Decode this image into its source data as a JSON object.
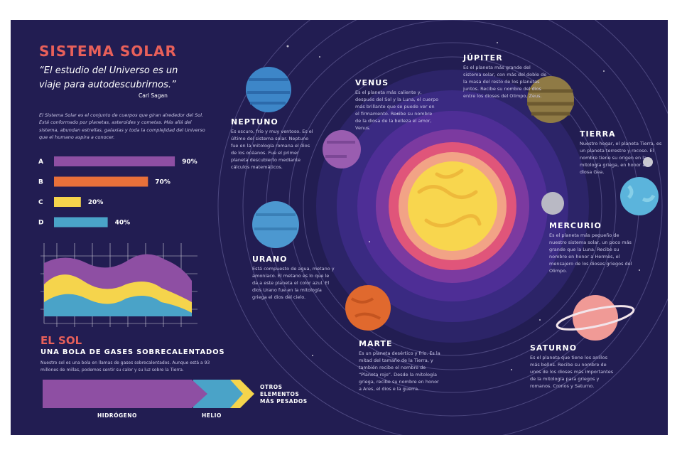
{
  "header": {
    "title": "SISTEMA SOLAR",
    "quote": "“El estudio del Universo es un viaje para autodescubrirnos.”",
    "author": "Carl Sagan"
  },
  "intro": "El Sistema Solar es el conjunto de cuerpos que giran alrededor del Sol. Está conformado por planetas, asteroides y cometas. Más allá del sistema, abundan estrellas, galaxias y toda la complejidad del Universo que el humano aspira a conocer.",
  "bar_chart": {
    "categories": [
      "A",
      "B",
      "C",
      "D"
    ],
    "values": [
      90,
      70,
      20,
      40
    ],
    "value_labels": [
      "90%",
      "70%",
      "20%",
      "40%"
    ],
    "colors": [
      "#8e4fa3",
      "#e8703a",
      "#f5d44c",
      "#4aa3c8"
    ]
  },
  "sun": {
    "title": "EL SOL",
    "subtitle": "UNA BOLA DE GASES SOBRECALENTADOS",
    "text": "Nuestro sol es una bola en llamas de gases sobrecalentados. Aunque está a 93 millones de millas, podemos sentir su calor y su luz sobre la Tierra.",
    "labels": [
      "HIDRÓGENO",
      "HELIO",
      "OTROS ELEMENTOS MÁS PESADOS"
    ]
  },
  "planets": [
    {
      "name": "NEPTUNO",
      "text": "Es oscuro, frío y muy ventoso. Es el último del sistema solar. Neptuno fue en la mitología romana el dios de los océanos. Fue el primer planeta descubierto mediante cálculos matemáticos."
    },
    {
      "name": "VENUS",
      "text": "Es el planeta más caliente y, después del Sol y la Luna, el cuerpo más brillante que se puede ver en el firmamento. Recibe su nombre de la diosa de la belleza el amor, Venus."
    },
    {
      "name": "JÚPITER",
      "text": "Es el planeta más grande del sistema solar, con más del doble de la masa del resto de los planetas juntos. Recibe su nombre del dios entre los dioses del Olimpo, Zeus."
    },
    {
      "name": "TIERRA",
      "text": "Nuestro hogar, el planeta Tierra, es un planeta terrestre y rocoso. El nombre tiene su origen en la mitología griega, en honor a la diosa Gea."
    },
    {
      "name": "MERCURIO",
      "text": "Es el planeta más pequeño de nuestro sistema solar, un poco más grande que la Luna. Recibe su nombre en honor a Hermes, el mensajero de los dioses griegos del Olimpo."
    },
    {
      "name": "URANO",
      "text": "Está compuesto de agua, metano y amoníaco. El metano es lo que le da a este planeta el color azul. El dios Urano fue en la mitología griega el dios del cielo."
    },
    {
      "name": "MARTE",
      "text": "Es un planeta desértico y frío. Es la mitad del tamaño de la Tierra, y también recibe el nombre de “Planeta rojo”. Desde la mitología griega, recibe su nombre en honor a Ares, el dios e la guerra."
    },
    {
      "name": "SATURNO",
      "text": "Es el planeta que tiene los anillos más bellos. Recibe su nombre de unos de los dioses más importantes de la mitología para griegos y romanos. Cronos y Saturno."
    }
  ]
}
